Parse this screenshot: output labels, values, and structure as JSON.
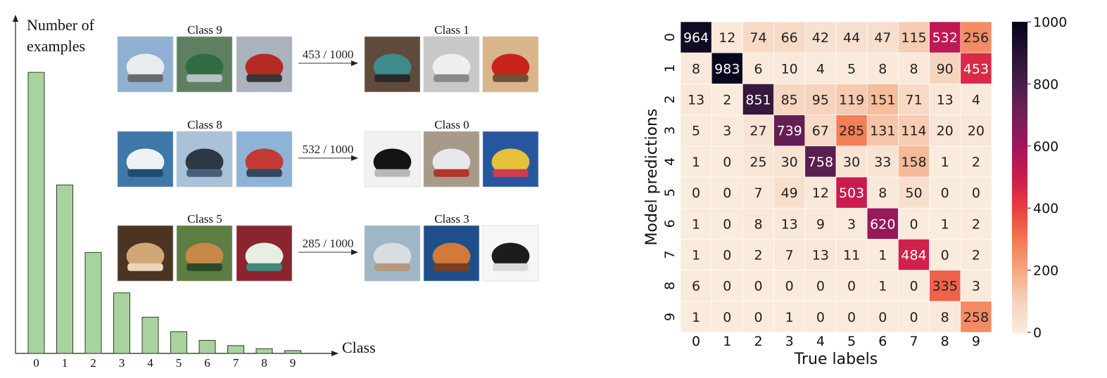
{
  "left_panel": {
    "y_axis_title_lines": [
      "Number of",
      "examples"
    ],
    "x_axis_title": "Class",
    "bar_color": "#a9d39e",
    "bar_stroke": "#2f3b2a",
    "rows": [
      {
        "source_class": "Class 9",
        "target_class": "Class 1",
        "ratio": "453 / 1000",
        "source_thumbs": [
          "truck-white-cab",
          "truck-green",
          "truck-red-fire-engine"
        ],
        "target_thumbs": [
          "car-teal-sedan",
          "car-white-sedan",
          "car-red-pickup"
        ]
      },
      {
        "source_class": "Class 8",
        "target_class": "Class 0",
        "ratio": "532 / 1000",
        "source_thumbs": [
          "ship-white-boat",
          "ship-tall-sailing",
          "ship-cargo-red"
        ],
        "target_thumbs": [
          "airplane-black-jet",
          "airplane-model-white",
          "airplane-colorful-kite"
        ]
      },
      {
        "source_class": "Class 5",
        "target_class": "Class 3",
        "ratio": "285 / 1000",
        "source_thumbs": [
          "dog-fluffy",
          "dog-greyhound",
          "dog-white-puppy"
        ],
        "target_thumbs": [
          "cat-grey-kitten",
          "cat-orange",
          "cat-black-white"
        ]
      }
    ]
  },
  "chart_data": [
    {
      "type": "bar",
      "title": "",
      "xlabel": "Class",
      "ylabel": "Number of examples",
      "categories": [
        "0",
        "1",
        "2",
        "3",
        "4",
        "5",
        "6",
        "7",
        "8",
        "9"
      ],
      "values": [
        5000,
        2997,
        1796,
        1077,
        645,
        387,
        232,
        139,
        83,
        50
      ],
      "y_ticks_shown": false
    },
    {
      "type": "heatmap",
      "title": "",
      "xlabel": "True labels",
      "ylabel": "Model predictions",
      "x_categories": [
        "0",
        "1",
        "2",
        "3",
        "4",
        "5",
        "6",
        "7",
        "8",
        "9"
      ],
      "y_categories": [
        "0",
        "1",
        "2",
        "3",
        "4",
        "5",
        "6",
        "7",
        "8",
        "9"
      ],
      "values": [
        [
          964,
          12,
          74,
          66,
          42,
          44,
          47,
          115,
          532,
          256
        ],
        [
          8,
          983,
          6,
          10,
          4,
          5,
          8,
          8,
          90,
          453
        ],
        [
          13,
          2,
          851,
          85,
          95,
          119,
          151,
          71,
          13,
          4
        ],
        [
          5,
          3,
          27,
          739,
          67,
          285,
          131,
          114,
          20,
          20
        ],
        [
          1,
          0,
          25,
          30,
          758,
          30,
          33,
          158,
          1,
          2
        ],
        [
          0,
          0,
          7,
          49,
          12,
          503,
          8,
          50,
          0,
          0
        ],
        [
          1,
          0,
          8,
          13,
          9,
          3,
          620,
          0,
          1,
          2
        ],
        [
          1,
          0,
          2,
          7,
          13,
          11,
          1,
          484,
          0,
          2
        ],
        [
          6,
          0,
          0,
          0,
          0,
          0,
          1,
          0,
          335,
          3
        ],
        [
          1,
          0,
          0,
          1,
          0,
          0,
          0,
          0,
          8,
          258
        ]
      ],
      "colorbar": {
        "range": [
          0,
          1000
        ],
        "ticks": [
          "0",
          "200",
          "400",
          "600",
          "800",
          "1000"
        ],
        "colormap": "rocket_r"
      }
    }
  ]
}
